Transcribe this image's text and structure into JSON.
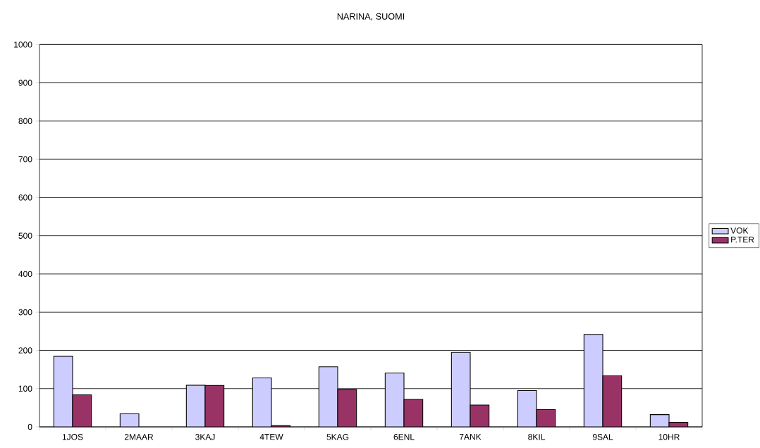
{
  "chart_data": {
    "type": "bar",
    "title": "NARINA, SUOMI",
    "categories": [
      "1JOS",
      "2MAAR",
      "3KAJ",
      "4TEW",
      "5KAG",
      "6ENL",
      "7ANK",
      "8KIL",
      "9SAL",
      "10HR"
    ],
    "series": [
      {
        "name": "VOK",
        "color": "#ccccff",
        "values": [
          185,
          34,
          109,
          128,
          157,
          141,
          195,
          95,
          242,
          32
        ]
      },
      {
        "name": "P.TER",
        "color": "#993366",
        "values": [
          84,
          null,
          108,
          3,
          98,
          72,
          57,
          45,
          134,
          12
        ]
      }
    ],
    "ylim": [
      0,
      1000
    ],
    "yticks": [
      0,
      100,
      200,
      300,
      400,
      500,
      600,
      700,
      800,
      900,
      1000
    ],
    "grid": "y",
    "legend": "right"
  }
}
